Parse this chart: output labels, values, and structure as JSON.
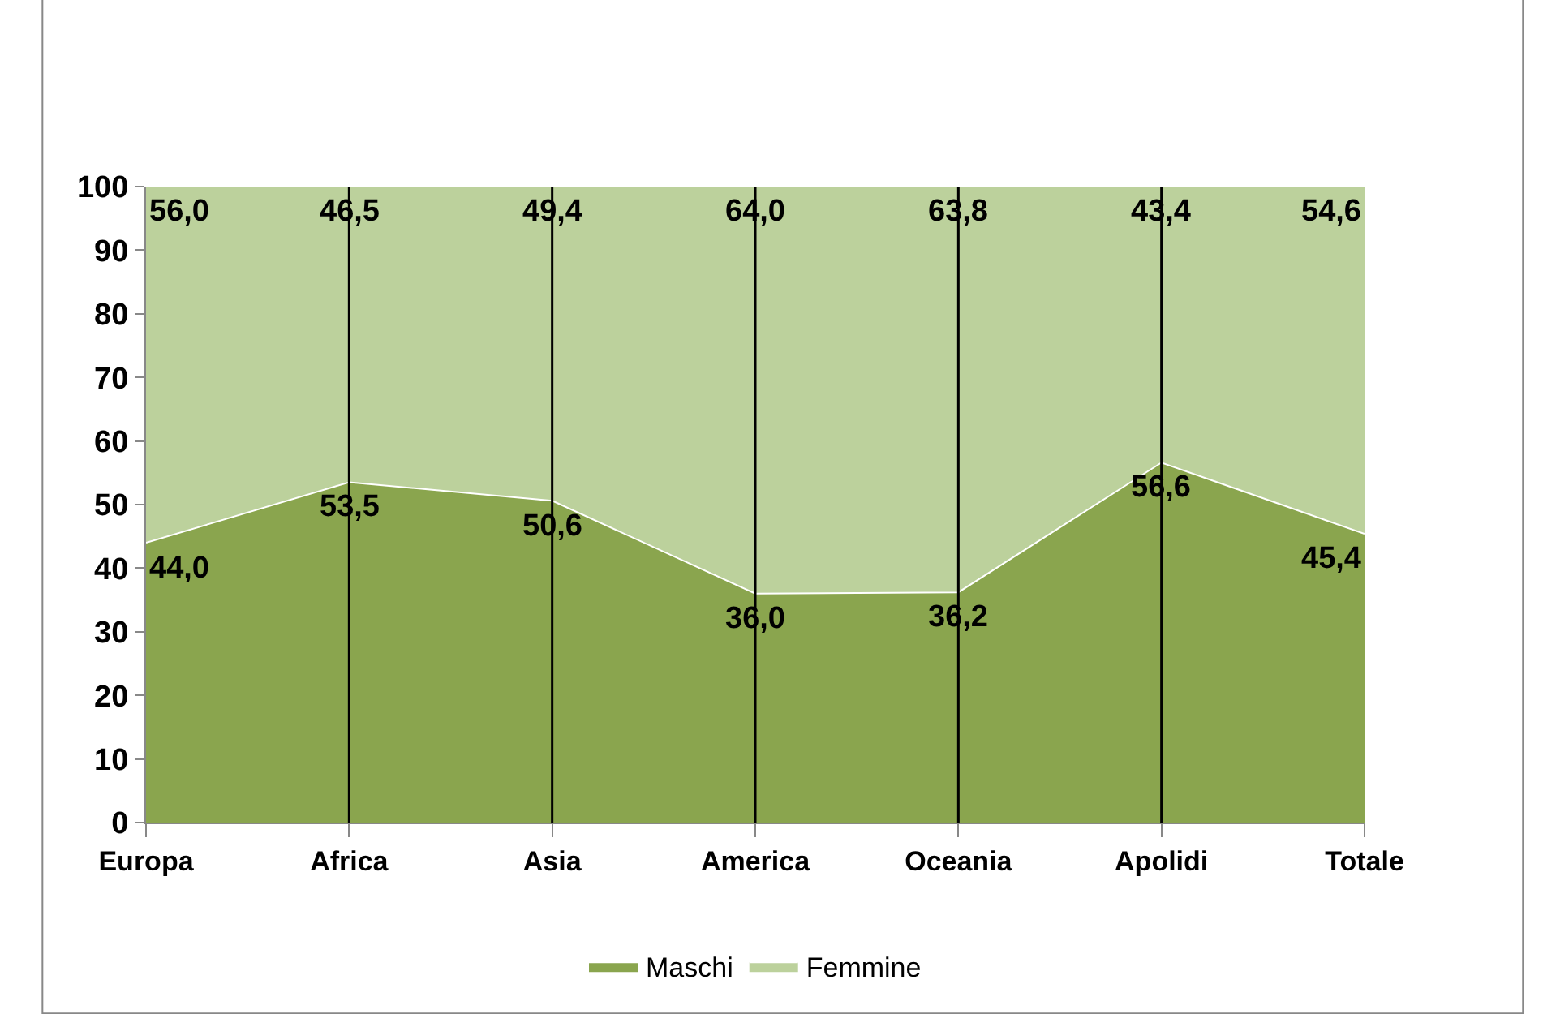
{
  "chart_data": {
    "type": "area",
    "stacked": true,
    "categories": [
      "Europa",
      "Africa",
      "Asia",
      "America",
      "Oceania",
      "Apolidi",
      "Totale"
    ],
    "series": [
      {
        "name": "Maschi",
        "color": "#8aa54e",
        "values": [
          44.0,
          53.5,
          50.6,
          36.0,
          36.2,
          56.6,
          45.4
        ],
        "value_labels": [
          "44,0",
          "53,5",
          "50,6",
          "36,0",
          "36,2",
          "56,6",
          "45,4"
        ]
      },
      {
        "name": "Femmine",
        "color": "#bcd19c",
        "values": [
          56.0,
          46.5,
          49.4,
          64.0,
          63.8,
          43.4,
          54.6
        ],
        "value_labels": [
          "56,0",
          "46,5",
          "49,4",
          "64,0",
          "63,8",
          "43,4",
          "54,6"
        ]
      }
    ],
    "ylim": [
      0,
      100
    ],
    "yticks": [
      0,
      10,
      20,
      30,
      40,
      50,
      60,
      70,
      80,
      90,
      100
    ],
    "grid": "x",
    "legend": "bottom"
  }
}
